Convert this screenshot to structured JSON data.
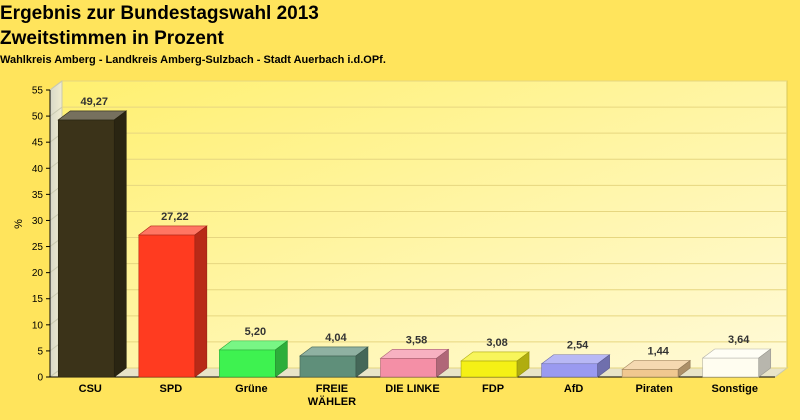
{
  "title": "Ergebnis zur Bundestagswahl 2013",
  "subtitle": "Zweitstimmen in Prozent",
  "subtitle2": "Wahlkreis Amberg - Landkreis Amberg-Sulzbach - Stadt Auerbach i.d.OPf.",
  "chart_data": {
    "type": "bar",
    "title": "Ergebnis zur Bundestagswahl 2013",
    "subtitle": "Zweitstimmen in Prozent",
    "categories": [
      "CSU",
      "SPD",
      "Grüne",
      "FREIE WÄHLER",
      "DIE LINKE",
      "FDP",
      "AfD",
      "Piraten",
      "Sonstige"
    ],
    "category_lines": [
      [
        "CSU"
      ],
      [
        "SPD"
      ],
      [
        "Grüne"
      ],
      [
        "FREIE",
        "WÄHLER"
      ],
      [
        "DIE LINKE"
      ],
      [
        "FDP"
      ],
      [
        "AfD"
      ],
      [
        "Piraten"
      ],
      [
        "Sonstige"
      ]
    ],
    "values": [
      49.27,
      27.22,
      5.2,
      4.04,
      3.58,
      3.08,
      2.54,
      1.44,
      3.64
    ],
    "value_labels": [
      "49,27",
      "27,22",
      "5,20",
      "4,04",
      "3,58",
      "3,08",
      "2,54",
      "1,44",
      "3,64"
    ],
    "colors": [
      "#3b3319",
      "#ff3b20",
      "#3ef250",
      "#5f8f7a",
      "#f48fa6",
      "#f5f015",
      "#9a9af0",
      "#f0c890",
      "#fffdf0"
    ],
    "ylabel": "%",
    "ylim": [
      0,
      55
    ],
    "yticks": [
      0,
      5,
      10,
      15,
      20,
      25,
      30,
      35,
      40,
      45,
      50,
      55
    ],
    "grid": true,
    "legend": "none"
  }
}
